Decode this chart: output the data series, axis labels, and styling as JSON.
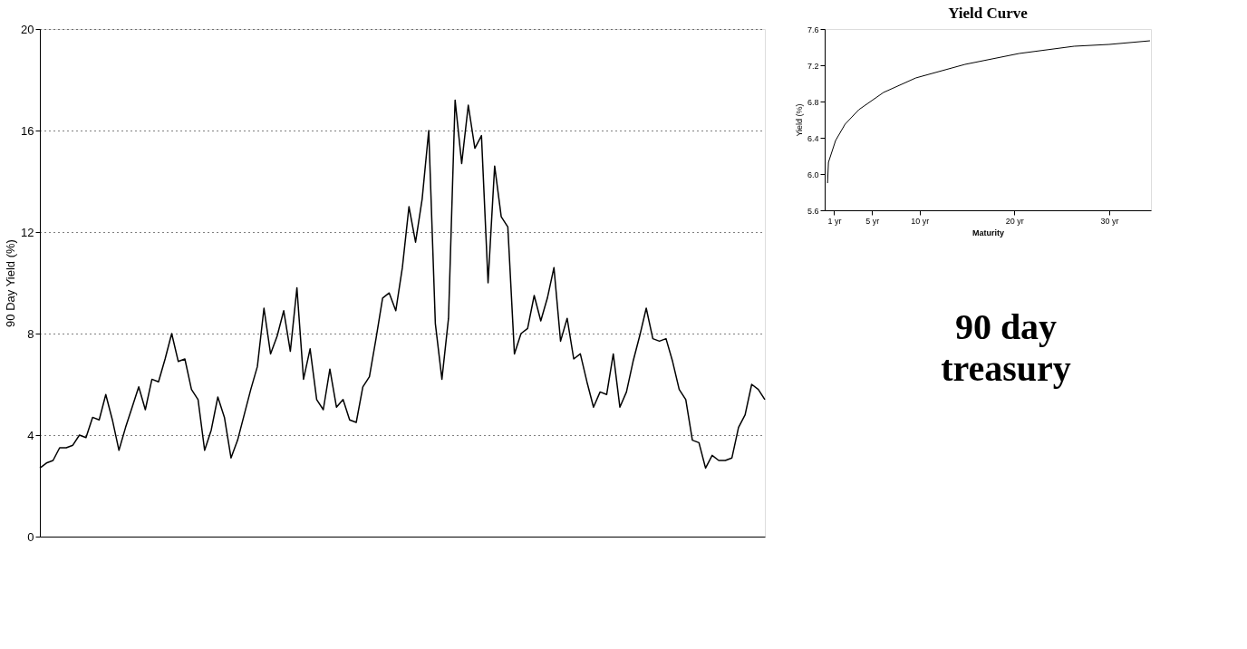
{
  "chart_data": [
    {
      "type": "line",
      "ylabel": "90 Day Yield (%)",
      "categories": [
        null,
        null,
        null,
        null,
        null,
        null,
        null,
        null,
        null,
        null,
        null,
        null,
        null,
        null,
        null,
        null,
        null,
        null,
        null,
        null,
        null,
        null,
        null,
        null,
        null,
        null,
        null,
        null,
        null,
        null,
        null,
        null,
        null,
        null,
        null,
        null,
        null,
        null,
        null,
        null,
        null,
        null,
        null,
        null,
        null,
        null,
        null,
        null,
        null,
        null,
        null,
        null,
        null,
        null,
        null,
        null,
        null,
        null,
        null,
        null,
        null,
        null,
        null,
        null,
        null,
        null,
        null,
        null,
        null,
        null,
        null,
        null,
        null,
        null,
        null,
        null,
        null,
        null,
        null,
        null,
        null,
        null,
        null,
        null,
        null,
        null,
        null,
        null,
        null,
        null,
        null,
        null,
        null,
        null,
        null,
        null,
        null,
        null,
        null,
        null,
        null,
        null,
        null,
        null,
        null,
        null,
        null,
        null,
        null,
        null,
        null
      ],
      "series": [
        {
          "color": "#000000",
          "values": [
            2.7,
            2.9,
            3.0,
            3.5,
            3.5,
            3.6,
            4.0,
            3.9,
            4.7,
            4.6,
            5.6,
            4.6,
            3.4,
            4.3,
            5.1,
            5.9,
            5.0,
            6.2,
            6.1,
            7.0,
            8.0,
            6.9,
            7.0,
            5.8,
            5.4,
            3.4,
            4.2,
            5.5,
            4.7,
            3.1,
            3.8,
            4.8,
            5.8,
            6.7,
            9.0,
            7.2,
            7.9,
            8.9,
            7.3,
            9.8,
            6.2,
            7.4,
            5.4,
            5.0,
            6.6,
            5.1,
            5.4,
            4.6,
            4.5,
            5.9,
            6.3,
            7.8,
            9.4,
            9.6,
            8.9,
            10.6,
            13.0,
            11.6,
            13.3,
            16.0,
            8.4,
            6.2,
            8.6,
            17.2,
            14.7,
            17.0,
            15.3,
            15.8,
            10.0,
            14.6,
            12.6,
            12.2,
            7.2,
            8.0,
            8.2,
            9.5,
            8.5,
            9.4,
            10.6,
            7.7,
            8.6,
            7.0,
            7.2,
            6.1,
            5.1,
            5.7,
            5.6,
            7.2,
            5.1,
            5.7,
            6.9,
            7.9,
            9.0,
            7.8,
            7.7,
            7.8,
            6.9,
            5.8,
            5.4,
            3.8,
            3.7,
            2.7,
            3.2,
            3.0,
            3.0,
            3.1,
            4.3,
            4.8,
            6.0,
            5.8,
            5.4
          ]
        }
      ],
      "ylim": [
        0,
        20
      ],
      "yticks": [
        0,
        4,
        8,
        12,
        16,
        20
      ],
      "grid": "y",
      "tick_labels": "y",
      "line_style": "solid",
      "annotations": [
        "90 day treasury"
      ]
    },
    {
      "type": "line",
      "title": "Yield Curve",
      "xlabel": "Maturity",
      "ylabel": "Yield (%)",
      "x": [
        0.3,
        0.4,
        1.15,
        2.15,
        3.6,
        6.2,
        9.6,
        14.8,
        20.5,
        26.3,
        30.0,
        34.3
      ],
      "series": [
        {
          "color": "#000000",
          "values": [
            5.9,
            6.13,
            6.37,
            6.55,
            6.71,
            6.9,
            7.06,
            7.21,
            7.33,
            7.41,
            7.43,
            7.47
          ]
        }
      ],
      "xlim": [
        0,
        34.4
      ],
      "xticks": [
        {
          "value": 1,
          "label": "1 yr"
        },
        {
          "value": 5,
          "label": "5 yr"
        },
        {
          "value": 10,
          "label": "10 yr"
        },
        {
          "value": 20,
          "label": "20 yr"
        },
        {
          "value": 30,
          "label": "30 yr"
        }
      ],
      "ylim": [
        5.6,
        7.6
      ],
      "yticks": [
        5.6,
        {
          "value": 6.0,
          "label": "6.0"
        },
        6.4,
        6.8,
        7.2,
        7.6
      ],
      "grid": false,
      "line_style": "solid"
    }
  ]
}
